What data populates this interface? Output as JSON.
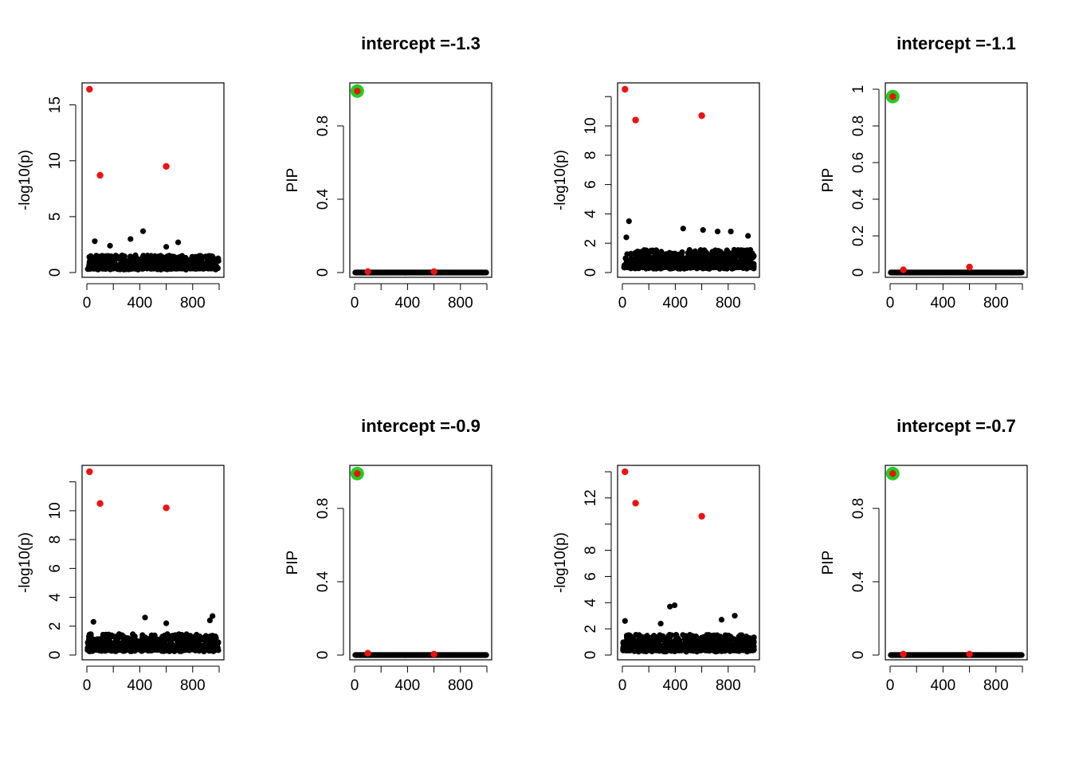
{
  "chart_data": [
    {
      "type": "scatter",
      "title": "",
      "xlabel": "",
      "ylabel": "-log10(p)",
      "xlim": [
        0,
        1000
      ],
      "ylim": [
        0,
        16.4
      ],
      "xticks": [
        0,
        400,
        800
      ],
      "yticks": [
        0,
        5,
        10,
        15
      ],
      "series": [
        {
          "color": "#000000",
          "noise": {
            "n": 600,
            "base": 0.35,
            "spread": 1.2,
            "peaks": [
              [
                425,
                3.7
              ],
              [
                330,
                3.0
              ],
              [
                60,
                2.8
              ],
              [
                690,
                2.7
              ],
              [
                600,
                2.3
              ],
              [
                175,
                2.4
              ]
            ]
          }
        },
        {
          "color": "#ee1111",
          "points": [
            [
              20,
              16.4
            ],
            [
              100,
              8.7
            ],
            [
              600,
              9.5
            ]
          ]
        }
      ]
    },
    {
      "type": "scatter",
      "title": "intercept =-1.3",
      "xlabel": "",
      "ylabel": "PIP",
      "xlim": [
        0,
        1000
      ],
      "ylim": [
        0,
        1
      ],
      "xticks": [
        0,
        400,
        800
      ],
      "yticks": [
        0,
        0.4,
        0.8
      ],
      "series": [
        {
          "color": "#000000",
          "baseline": 0.0
        },
        {
          "color": "#ee1111",
          "points": [
            [
              20,
              0.99
            ],
            [
              100,
              0.005
            ],
            [
              600,
              0.005
            ]
          ]
        }
      ],
      "highlight": {
        "color": "#22cc22",
        "points": [
          [
            20,
            0.99
          ]
        ]
      }
    },
    {
      "type": "scatter",
      "title": "",
      "xlabel": "",
      "ylabel": "-log10(p)",
      "xlim": [
        0,
        1000
      ],
      "ylim": [
        0,
        12.5
      ],
      "xticks": [
        0,
        400,
        800
      ],
      "yticks": [
        0,
        2,
        4,
        6,
        8,
        10
      ],
      "series": [
        {
          "color": "#000000",
          "noise": {
            "n": 600,
            "base": 0.35,
            "spread": 1.2,
            "peaks": [
              [
                50,
                3.5
              ],
              [
                30,
                2.4
              ],
              [
                460,
                3.0
              ],
              [
                610,
                2.9
              ],
              [
                820,
                2.8
              ],
              [
                720,
                2.8
              ],
              [
                950,
                2.5
              ]
            ]
          }
        },
        {
          "color": "#ee1111",
          "points": [
            [
              20,
              12.5
            ],
            [
              100,
              10.4
            ],
            [
              600,
              10.7
            ]
          ]
        }
      ]
    },
    {
      "type": "scatter",
      "title": "intercept =-1.1",
      "xlabel": "",
      "ylabel": "PIP",
      "xlim": [
        0,
        1000
      ],
      "ylim": [
        0,
        1
      ],
      "xticks": [
        0,
        400,
        800
      ],
      "yticks": [
        0,
        0.2,
        0.4,
        0.6,
        0.8,
        1.0
      ],
      "series": [
        {
          "color": "#000000",
          "baseline": 0.0
        },
        {
          "color": "#ee1111",
          "points": [
            [
              20,
              0.96
            ],
            [
              100,
              0.015
            ],
            [
              600,
              0.03
            ]
          ]
        }
      ],
      "highlight": {
        "color": "#22cc22",
        "points": [
          [
            20,
            0.96
          ]
        ]
      }
    },
    {
      "type": "scatter",
      "title": "",
      "xlabel": "",
      "ylabel": "-log10(p)",
      "xlim": [
        0,
        1000
      ],
      "ylim": [
        0,
        12.7
      ],
      "xticks": [
        0,
        400,
        800
      ],
      "yticks": [
        0,
        2,
        4,
        6,
        8,
        10
      ],
      "series": [
        {
          "color": "#000000",
          "noise": {
            "n": 600,
            "base": 0.35,
            "spread": 1.1,
            "peaks": [
              [
                440,
                2.6
              ],
              [
                50,
                2.3
              ],
              [
                950,
                2.7
              ],
              [
                600,
                2.2
              ],
              [
                930,
                2.4
              ]
            ]
          }
        },
        {
          "color": "#ee1111",
          "points": [
            [
              20,
              12.7
            ],
            [
              100,
              10.5
            ],
            [
              600,
              10.2
            ]
          ]
        }
      ]
    },
    {
      "type": "scatter",
      "title": "intercept =-0.9",
      "xlabel": "",
      "ylabel": "PIP",
      "xlim": [
        0,
        1000
      ],
      "ylim": [
        0,
        1
      ],
      "xticks": [
        0,
        400,
        800
      ],
      "yticks": [
        0,
        0.4,
        0.8
      ],
      "series": [
        {
          "color": "#000000",
          "baseline": 0.0
        },
        {
          "color": "#ee1111",
          "points": [
            [
              20,
              0.99
            ],
            [
              100,
              0.01
            ],
            [
              600,
              0.005
            ]
          ]
        }
      ],
      "highlight": {
        "color": "#22cc22",
        "points": [
          [
            20,
            0.99
          ]
        ]
      }
    },
    {
      "type": "scatter",
      "title": "",
      "xlabel": "",
      "ylabel": "-log10(p)",
      "xlim": [
        0,
        1000
      ],
      "ylim": [
        0,
        14.0
      ],
      "xticks": [
        0,
        400,
        800
      ],
      "yticks": [
        0,
        2,
        4,
        6,
        8,
        12
      ],
      "series": [
        {
          "color": "#000000",
          "noise": {
            "n": 600,
            "base": 0.35,
            "spread": 1.2,
            "peaks": [
              [
                360,
                3.7
              ],
              [
                395,
                3.8
              ],
              [
                850,
                3.0
              ],
              [
                20,
                2.6
              ],
              [
                290,
                2.4
              ],
              [
                750,
                2.7
              ]
            ]
          }
        },
        {
          "color": "#ee1111",
          "points": [
            [
              20,
              14.0
            ],
            [
              100,
              11.6
            ],
            [
              600,
              10.6
            ]
          ]
        }
      ]
    },
    {
      "type": "scatter",
      "title": "intercept =-0.7",
      "xlabel": "",
      "ylabel": "PIP",
      "xlim": [
        0,
        1000
      ],
      "ylim": [
        0,
        1
      ],
      "xticks": [
        0,
        400,
        800
      ],
      "yticks": [
        0,
        0.4,
        0.8
      ],
      "series": [
        {
          "color": "#000000",
          "baseline": 0.0
        },
        {
          "color": "#ee1111",
          "points": [
            [
              20,
              0.99
            ],
            [
              100,
              0.005
            ],
            [
              600,
              0.005
            ]
          ]
        }
      ],
      "highlight": {
        "color": "#22cc22",
        "points": [
          [
            20,
            0.99
          ]
        ]
      }
    }
  ]
}
